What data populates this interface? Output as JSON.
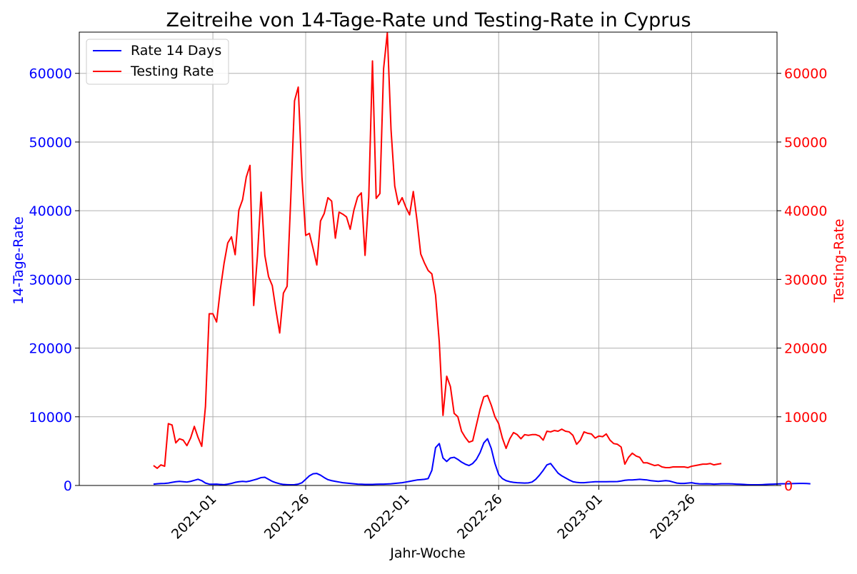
{
  "chart_data": {
    "type": "line",
    "title": "Zeitreihe von 14-Tage-Rate und Testing-Rate in Cyprus",
    "xlabel": "Jahr-Woche",
    "ylabel_left": "14-Tage-Rate",
    "ylabel_right": "Testing-Rate",
    "ylim_left": [
      0,
      66000
    ],
    "ylim_right": [
      0,
      66000
    ],
    "x_tick_labels": [
      "2021-01",
      "2021-26",
      "2022-01",
      "2022-26",
      "2023-01",
      "2023-26"
    ],
    "x_tick_index": [
      0,
      25,
      52,
      77,
      104,
      129
    ],
    "y_ticks": [
      0,
      10000,
      20000,
      30000,
      40000,
      50000,
      60000
    ],
    "x_index_range": [
      -36,
      152
    ],
    "grid": true,
    "legend_position": "top-left",
    "colors": {
      "left_axis": "#0000ff",
      "right_axis": "#ff0000"
    },
    "series": [
      {
        "name": "Rate 14 Days",
        "axis": "left",
        "color": "#0000ff",
        "x_start_index": -16,
        "values": [
          200,
          250,
          280,
          300,
          350,
          450,
          550,
          600,
          550,
          500,
          600,
          750,
          900,
          700,
          350,
          200,
          180,
          200,
          150,
          120,
          200,
          300,
          450,
          550,
          600,
          550,
          650,
          800,
          950,
          1150,
          1200,
          900,
          600,
          400,
          250,
          150,
          120,
          100,
          120,
          200,
          400,
          900,
          1400,
          1700,
          1750,
          1500,
          1150,
          850,
          700,
          600,
          500,
          400,
          350,
          300,
          250,
          200,
          180,
          160,
          150,
          150,
          180,
          200,
          200,
          220,
          250,
          300,
          350,
          400,
          500,
          600,
          700,
          800,
          850,
          900,
          1000,
          2200,
          5500,
          6100,
          4000,
          3500,
          4000,
          4100,
          3800,
          3400,
          3100,
          2900,
          3200,
          3800,
          4800,
          6200,
          6800,
          5400,
          3200,
          1600,
          1000,
          700,
          550,
          450,
          400,
          380,
          350,
          380,
          500,
          900,
          1500,
          2200,
          3000,
          3200,
          2500,
          1800,
          1400,
          1100,
          800,
          550,
          450,
          400,
          400,
          450,
          500,
          550,
          550,
          550,
          550,
          560,
          560,
          570,
          650,
          750,
          800,
          800,
          850,
          900,
          850,
          800,
          700,
          650,
          600,
          650,
          700,
          650,
          500,
          350,
          300,
          300,
          350,
          400,
          300,
          250,
          230,
          250,
          230,
          200,
          220,
          250,
          250,
          250,
          230,
          200,
          180,
          150,
          120,
          100,
          100,
          100,
          120,
          150,
          180,
          200,
          220,
          250,
          250,
          250,
          270,
          280,
          300,
          300,
          280,
          250
        ]
      },
      {
        "name": "Testing Rate",
        "axis": "right",
        "color": "#ff0000",
        "x_start_index": -16,
        "values": [
          2900,
          2500,
          3000,
          2800,
          9000,
          8800,
          6200,
          6800,
          6600,
          5800,
          6900,
          8600,
          7000,
          5700,
          11500,
          25000,
          25000,
          23800,
          28500,
          32300,
          35300,
          36200,
          33600,
          40100,
          41600,
          44900,
          46600,
          26200,
          33400,
          42700,
          33500,
          30400,
          29100,
          25500,
          22200,
          28000,
          29000,
          42000,
          56000,
          58000,
          44900,
          36400,
          36700,
          34500,
          32100,
          38500,
          39600,
          41900,
          41400,
          36000,
          39800,
          39500,
          39100,
          37300,
          40100,
          42000,
          42600,
          33500,
          42000,
          61800,
          41800,
          42500,
          60700,
          65900,
          51800,
          43600,
          40900,
          41900,
          40500,
          39400,
          42800,
          38600,
          33700,
          32400,
          31300,
          30800,
          27700,
          20900,
          10200,
          15900,
          14400,
          10500,
          10000,
          7900,
          7000,
          6300,
          6500,
          8800,
          11100,
          12900,
          13100,
          11700,
          10000,
          9000,
          6900,
          5400,
          6800,
          7700,
          7400,
          6800,
          7400,
          7300,
          7400,
          7400,
          7200,
          6600,
          7900,
          7800,
          8000,
          7900,
          8200,
          7900,
          7800,
          7300,
          6000,
          6600,
          7800,
          7600,
          7500,
          6900,
          7200,
          7100,
          7500,
          6600,
          6100,
          6000,
          5600,
          3100,
          4100,
          4700,
          4300,
          4100,
          3300,
          3300,
          3100,
          2900,
          3000,
          2700,
          2600,
          2600,
          2700,
          2700,
          2700,
          2700,
          2600,
          2800,
          2900,
          3000,
          3100,
          3100,
          3200,
          3000,
          3100,
          3200
        ]
      }
    ]
  }
}
